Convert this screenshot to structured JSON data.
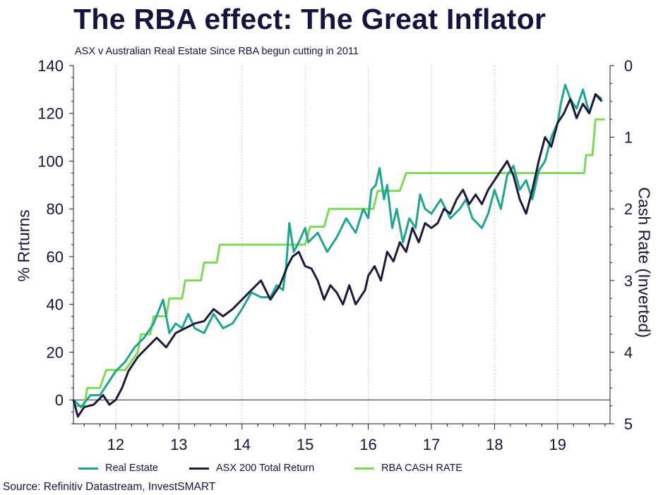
{
  "title": "The RBA effect: The Great Inflator",
  "subtitle": "ASX v Australian Real Estate Since RBA begun cutting in 2011",
  "source": "Source: Refinitiv Datastream, InvestSMART",
  "colors": {
    "real_estate": "#1fa58e",
    "asx200": "#1c1a3c",
    "rba_cash_rate": "#7ed957",
    "text": "#14143c",
    "grid": "#b8b8c4"
  },
  "chart_data": {
    "type": "line",
    "ylabel": "% Rrturns",
    "ylabel_right": "Cash Rate (Inverted)",
    "ylim": [
      -10,
      140
    ],
    "ylim_right": [
      0,
      5
    ],
    "right_axis_inverted": true,
    "xlim": [
      2011.33,
      2019.83
    ],
    "x_ticks": [
      2012,
      2013,
      2014,
      2015,
      2016,
      2017,
      2018,
      2019
    ],
    "x_tick_labels": [
      "12",
      "13",
      "14",
      "15",
      "16",
      "17",
      "18",
      "19"
    ],
    "y_ticks": [
      0,
      20,
      40,
      60,
      80,
      100,
      120,
      140
    ],
    "y_tick_labels": [
      "0",
      "20",
      "40",
      "60",
      "80",
      "100",
      "120",
      "140"
    ],
    "y_right_ticks": [
      0,
      1,
      2,
      3,
      4,
      5
    ],
    "y_right_tick_labels": [
      "0",
      "1",
      "2",
      "3",
      "4",
      "5"
    ],
    "grid": "vertical dotted",
    "legend_position": "bottom",
    "series": [
      {
        "name": "Real Estate",
        "axis": "left",
        "x": [
          2011.33,
          2011.45,
          2011.6,
          2011.75,
          2011.9,
          2012.0,
          2012.15,
          2012.3,
          2012.45,
          2012.6,
          2012.75,
          2012.85,
          2012.95,
          2013.05,
          2013.15,
          2013.25,
          2013.4,
          2013.55,
          2013.7,
          2013.85,
          2014.0,
          2014.15,
          2014.3,
          2014.45,
          2014.55,
          2014.65,
          2014.7,
          2014.75,
          2014.82,
          2014.9,
          2015.0,
          2015.05,
          2015.2,
          2015.35,
          2015.5,
          2015.65,
          2015.8,
          2015.92,
          2016.0,
          2016.05,
          2016.12,
          2016.18,
          2016.25,
          2016.3,
          2016.38,
          2016.45,
          2016.55,
          2016.65,
          2016.75,
          2016.82,
          2016.9,
          2017.0,
          2017.15,
          2017.3,
          2017.45,
          2017.55,
          2017.65,
          2017.8,
          2017.9,
          2018.0,
          2018.1,
          2018.2,
          2018.3,
          2018.4,
          2018.5,
          2018.6,
          2018.7,
          2018.8,
          2018.9,
          2019.0,
          2019.05,
          2019.12,
          2019.2,
          2019.3,
          2019.4,
          2019.5,
          2019.6,
          2019.7
        ],
        "y": [
          0,
          -3,
          2,
          2,
          8,
          12,
          16,
          22,
          26,
          32,
          42,
          28,
          32,
          30,
          36,
          30,
          28,
          36,
          30,
          32,
          38,
          45,
          43,
          43,
          48,
          46,
          56,
          74,
          62,
          66,
          72,
          66,
          70,
          62,
          68,
          76,
          70,
          80,
          76,
          88,
          90,
          97,
          84,
          90,
          72,
          80,
          66,
          76,
          72,
          86,
          80,
          78,
          84,
          76,
          80,
          84,
          76,
          72,
          78,
          88,
          80,
          94,
          98,
          88,
          92,
          84,
          96,
          100,
          110,
          116,
          124,
          132,
          126,
          122,
          130,
          120,
          128,
          126
        ]
      },
      {
        "name": "ASX 200 Total Return",
        "axis": "left",
        "x": [
          2011.33,
          2011.4,
          2011.5,
          2011.65,
          2011.8,
          2011.9,
          2012.0,
          2012.1,
          2012.2,
          2012.35,
          2012.5,
          2012.65,
          2012.8,
          2012.95,
          2013.1,
          2013.25,
          2013.4,
          2013.55,
          2013.7,
          2013.85,
          2014.0,
          2014.15,
          2014.3,
          2014.45,
          2014.6,
          2014.72,
          2014.8,
          2014.9,
          2015.0,
          2015.1,
          2015.2,
          2015.3,
          2015.4,
          2015.5,
          2015.6,
          2015.7,
          2015.8,
          2015.95,
          2016.0,
          2016.1,
          2016.2,
          2016.3,
          2016.4,
          2016.5,
          2016.6,
          2016.7,
          2016.8,
          2016.9,
          2017.0,
          2017.1,
          2017.2,
          2017.3,
          2017.4,
          2017.5,
          2017.6,
          2017.7,
          2017.8,
          2017.9,
          2018.0,
          2018.1,
          2018.2,
          2018.3,
          2018.4,
          2018.5,
          2018.6,
          2018.7,
          2018.8,
          2018.9,
          2019.0,
          2019.1,
          2019.2,
          2019.3,
          2019.4,
          2019.5,
          2019.6,
          2019.7
        ],
        "y": [
          0,
          -7,
          -3,
          -2,
          2,
          -2,
          0,
          5,
          12,
          18,
          22,
          26,
          22,
          28,
          30,
          32,
          33,
          38,
          35,
          38,
          42,
          46,
          50,
          42,
          48,
          56,
          60,
          62,
          56,
          55,
          50,
          42,
          48,
          45,
          40,
          48,
          40,
          46,
          52,
          56,
          50,
          62,
          58,
          66,
          62,
          72,
          66,
          74,
          72,
          74,
          80,
          78,
          84,
          88,
          82,
          86,
          82,
          88,
          92,
          96,
          100,
          94,
          84,
          78,
          88,
          100,
          110,
          106,
          116,
          120,
          126,
          118,
          124,
          120,
          128,
          125
        ]
      },
      {
        "name": "RBA CASH RATE",
        "axis": "right",
        "x": [
          2011.33,
          2011.5,
          2011.55,
          2011.75,
          2011.85,
          2011.9,
          2012.0,
          2012.15,
          2012.35,
          2012.4,
          2012.55,
          2012.6,
          2012.8,
          2012.85,
          2013.05,
          2013.1,
          2013.35,
          2013.4,
          2013.6,
          2013.65,
          2014.0,
          2014.5,
          2015.0,
          2015.08,
          2015.3,
          2015.38,
          2015.9,
          2016.0,
          2016.08,
          2016.15,
          2016.5,
          2016.6,
          2017.0,
          2018.0,
          2019.0,
          2019.42,
          2019.45,
          2019.55,
          2019.6,
          2019.75
        ],
        "y": [
          4.75,
          4.75,
          4.5,
          4.5,
          4.25,
          4.25,
          4.25,
          4.25,
          4.0,
          3.75,
          3.75,
          3.5,
          3.5,
          3.25,
          3.25,
          3.0,
          3.0,
          2.75,
          2.75,
          2.5,
          2.5,
          2.5,
          2.5,
          2.25,
          2.25,
          2.0,
          2.0,
          2.0,
          2.0,
          1.75,
          1.75,
          1.5,
          1.5,
          1.5,
          1.5,
          1.5,
          1.25,
          1.25,
          0.75,
          0.75
        ]
      }
    ]
  }
}
